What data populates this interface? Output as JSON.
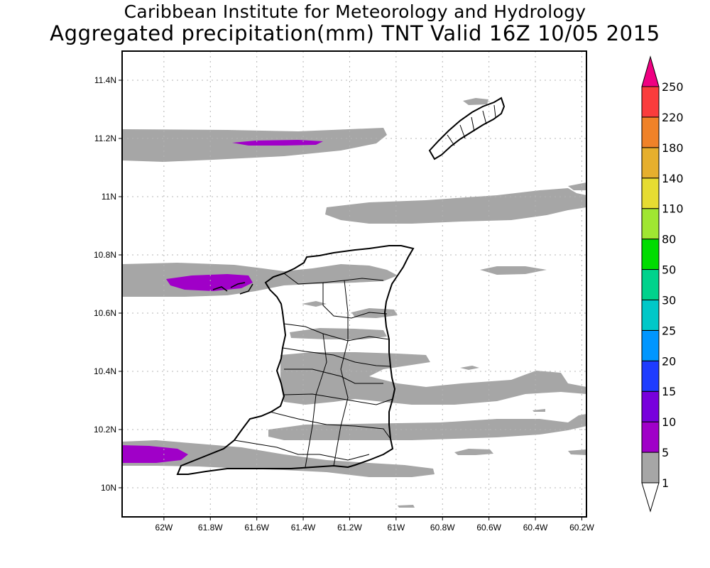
{
  "title": {
    "line1": "Caribbean Institute for Meteorology and Hydrology",
    "line2": "Aggregated precipitation(mm) TNT Valid 16Z 10/05 2015"
  },
  "axes": {
    "x_ticks": [
      "62W",
      "61.8W",
      "61.6W",
      "61.4W",
      "61.2W",
      "61W",
      "60.8W",
      "60.6W",
      "60.4W",
      "60.2W"
    ],
    "y_ticks": [
      "10N",
      "10.2N",
      "10.4N",
      "10.6N",
      "10.8N",
      "11N",
      "11.2N",
      "11.4N"
    ],
    "lon_range": [
      -62.18,
      -60.18
    ],
    "lat_range": [
      9.9,
      11.5
    ],
    "grid": true
  },
  "colorbar": {
    "labels": [
      "1",
      "5",
      "10",
      "15",
      "20",
      "25",
      "30",
      "50",
      "80",
      "110",
      "140",
      "180",
      "220",
      "250"
    ],
    "colors": [
      "#ffffff",
      "#a6a6a6",
      "#a000c8",
      "#7800dc",
      "#1e3cff",
      "#0096ff",
      "#00c8c8",
      "#00d28c",
      "#00dc00",
      "#a0e632",
      "#e6dc32",
      "#e6af2d",
      "#f08228",
      "#fa3c3c",
      "#f00082"
    ]
  },
  "precipitation_colors": {
    "light": "#a6a6a6",
    "moderate": "#a000c8"
  }
}
